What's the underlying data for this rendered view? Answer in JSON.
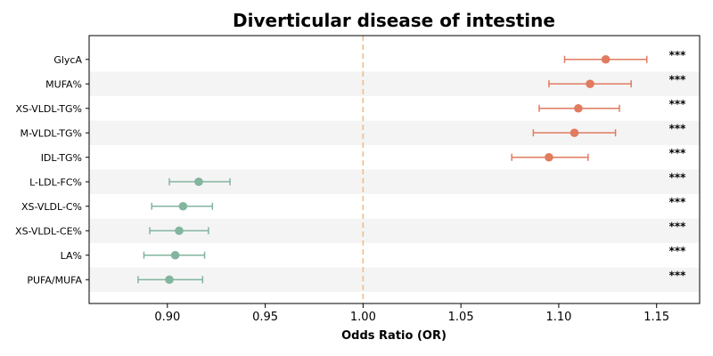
{
  "chart_data": {
    "type": "forest",
    "title": "Diverticular disease of intestine",
    "xlabel": "Odds Ratio (OR)",
    "ylabel": "",
    "xlim": [
      0.86,
      1.172
    ],
    "xticks": [
      0.9,
      0.95,
      1.0,
      1.05,
      1.1,
      1.15
    ],
    "xtick_labels": [
      "0.90",
      "0.95",
      "1.00",
      "1.05",
      "1.10",
      "1.15"
    ],
    "reference_line": 1.0,
    "grid": false,
    "row_banding": true,
    "colors": {
      "increased": "#e07b5f",
      "decreased": "#82b59e",
      "reference": "#f5b97a",
      "band": "#f4f4f4"
    },
    "rows": [
      {
        "label": "GlycA",
        "or": 1.124,
        "lower": 1.103,
        "upper": 1.145,
        "sig": "***"
      },
      {
        "label": "MUFA%",
        "or": 1.116,
        "lower": 1.095,
        "upper": 1.137,
        "sig": "***"
      },
      {
        "label": "XS-VLDL-TG%",
        "or": 1.11,
        "lower": 1.09,
        "upper": 1.131,
        "sig": "***"
      },
      {
        "label": "M-VLDL-TG%",
        "or": 1.108,
        "lower": 1.087,
        "upper": 1.129,
        "sig": "***"
      },
      {
        "label": "IDL-TG%",
        "or": 1.095,
        "lower": 1.076,
        "upper": 1.115,
        "sig": "***"
      },
      {
        "label": "L-LDL-FC%",
        "or": 0.916,
        "lower": 0.901,
        "upper": 0.932,
        "sig": "***"
      },
      {
        "label": "XS-VLDL-C%",
        "or": 0.908,
        "lower": 0.892,
        "upper": 0.923,
        "sig": "***"
      },
      {
        "label": "XS-VLDL-CE%",
        "or": 0.906,
        "lower": 0.891,
        "upper": 0.921,
        "sig": "***"
      },
      {
        "label": "LA%",
        "or": 0.904,
        "lower": 0.888,
        "upper": 0.919,
        "sig": "***"
      },
      {
        "label": "PUFA/MUFA",
        "or": 0.901,
        "lower": 0.885,
        "upper": 0.918,
        "sig": "***"
      }
    ]
  }
}
